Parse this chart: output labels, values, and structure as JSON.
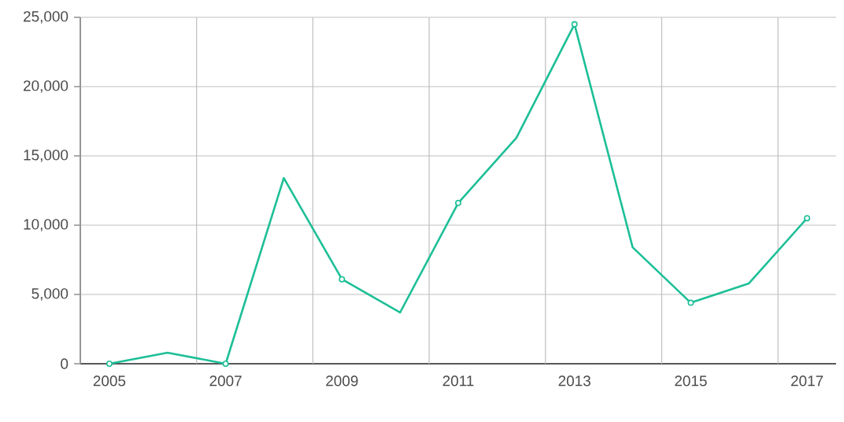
{
  "chart_data": {
    "type": "line",
    "x": [
      2005,
      2006,
      2007,
      2008,
      2009,
      2010,
      2011,
      2012,
      2013,
      2014,
      2015,
      2016,
      2017
    ],
    "series": [
      {
        "color": "#1dbf97",
        "values": [
          0,
          800,
          0,
          13400,
          6100,
          3700,
          11600,
          16300,
          24500,
          8400,
          4400,
          5800,
          10500
        ]
      }
    ],
    "xlim": [
      2004.5,
      2017.5
    ],
    "xticks": [
      {
        "value": 2004.5,
        "label": null
      },
      2005,
      {
        "value": 2006.5,
        "label": null
      },
      2007,
      {
        "value": 2008.5,
        "label": null
      },
      2009,
      {
        "value": 2010.5,
        "label": null
      },
      2011,
      {
        "value": 2012.5,
        "label": null
      },
      2013,
      {
        "value": 2014.5,
        "label": null
      },
      2015,
      {
        "value": 2016.5,
        "label": null
      },
      2017
    ],
    "ylim": [
      0,
      25000
    ],
    "yticks": [
      0,
      {
        "value": 5000,
        "label": "5,000"
      },
      {
        "value": 10000,
        "label": "10,000"
      },
      {
        "value": 15000,
        "label": "15,000"
      },
      {
        "value": 20000,
        "label": "20,000"
      },
      {
        "value": 25000,
        "label": "25,000"
      }
    ],
    "grid": true,
    "marker": "circle",
    "line_style": "solid"
  }
}
